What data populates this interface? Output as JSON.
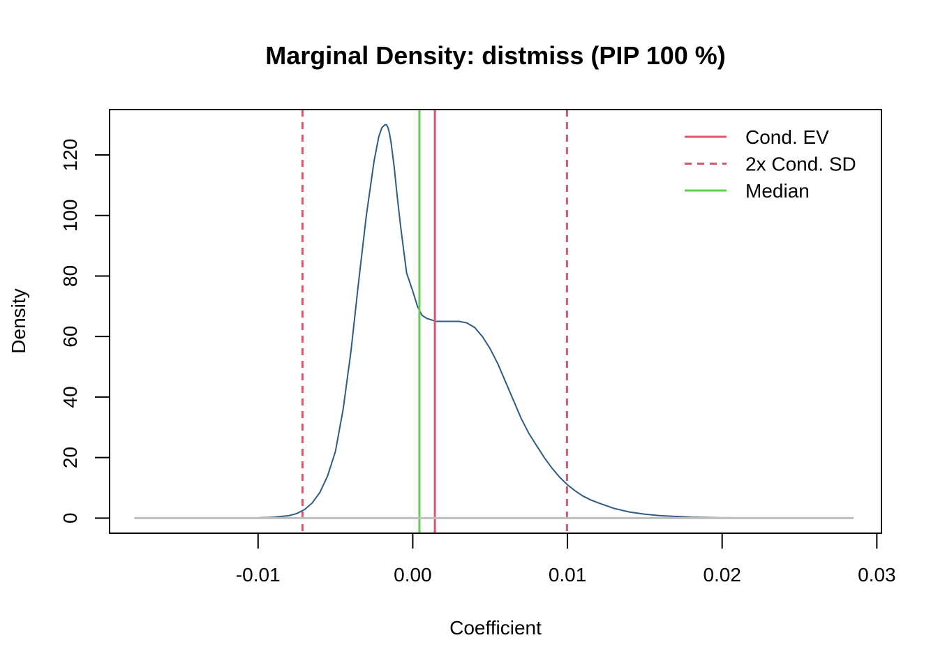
{
  "chart_data": {
    "type": "line",
    "title": "Marginal Density: distmiss (PIP 100 %)",
    "xlabel": "Coefficient",
    "ylabel": "Density",
    "xlim": [
      -0.0196,
      0.0303
    ],
    "ylim": [
      -5,
      135
    ],
    "x_ticks": [
      -0.01,
      0.0,
      0.01,
      0.02,
      0.03
    ],
    "x_tick_labels": [
      "-0.01",
      "0.00",
      "0.01",
      "0.02",
      "0.03"
    ],
    "y_ticks": [
      0,
      20,
      40,
      60,
      80,
      100,
      120
    ],
    "y_tick_labels": [
      "0",
      "20",
      "40",
      "60",
      "80",
      "100",
      "120"
    ],
    "grid": false,
    "legend_position": "top-right",
    "colors": {
      "density": "#2F5B85",
      "cond_ev": "#DF536B",
      "cond_sd": "#DF536B",
      "median": "#61D04F",
      "baseline": "#BEBEBE"
    },
    "series": [
      {
        "name": "",
        "x": [
          -0.0177,
          -0.012,
          -0.01,
          -0.009,
          -0.008,
          -0.0075,
          -0.007,
          -0.0065,
          -0.006,
          -0.0055,
          -0.005,
          -0.0045,
          -0.004,
          -0.0035,
          -0.003,
          -0.0025,
          -0.0022,
          -0.002,
          -0.0018,
          -0.0017,
          -0.0016,
          -0.0015,
          -0.0014,
          -0.0012,
          -0.001,
          -0.0008,
          -0.0006,
          -0.0004,
          -0.0002,
          0.0,
          0.0003,
          0.0006,
          0.0009,
          0.0012,
          0.0015,
          0.002,
          0.0025,
          0.003,
          0.0035,
          0.004,
          0.0045,
          0.005,
          0.0055,
          0.006,
          0.0065,
          0.007,
          0.0075,
          0.008,
          0.0085,
          0.009,
          0.0095,
          0.01,
          0.0105,
          0.011,
          0.0115,
          0.012,
          0.013,
          0.014,
          0.015,
          0.016,
          0.018,
          0.02,
          0.022,
          0.025,
          0.0285
        ],
        "y": [
          0,
          0,
          0.1,
          0.3,
          0.8,
          1.5,
          2.8,
          5.0,
          8.5,
          14,
          22,
          36,
          55,
          78,
          100,
          118,
          126,
          129,
          130,
          130,
          129,
          127,
          124,
          116,
          106,
          97,
          89,
          81,
          78,
          75,
          70,
          67,
          66,
          65.5,
          65,
          65,
          65,
          65,
          64.5,
          63,
          60,
          56,
          51,
          45,
          39,
          33,
          28,
          24,
          20,
          16.5,
          13.5,
          11,
          9,
          7.3,
          6,
          5,
          3.2,
          2.0,
          1.3,
          0.8,
          0.3,
          0.1,
          0.05,
          0.02,
          0
        ]
      }
    ],
    "vertical_lines": [
      {
        "name": "Cond. EV",
        "x": 0.00143,
        "style": "solid"
      },
      {
        "name": "2x Cond. SD",
        "x": -0.00713,
        "style": "dashed"
      },
      {
        "name": "2x Cond. SD",
        "x": 0.00997,
        "style": "dashed"
      },
      {
        "name": "Median",
        "x": 0.00043,
        "style": "solid"
      }
    ],
    "legend": [
      {
        "label": "Cond. EV",
        "style": "solid",
        "color": "#DF536B"
      },
      {
        "label": "2x Cond. SD",
        "style": "dashed",
        "color": "#DF536B"
      },
      {
        "label": "Median",
        "style": "solid",
        "color": "#61D04F"
      }
    ]
  }
}
